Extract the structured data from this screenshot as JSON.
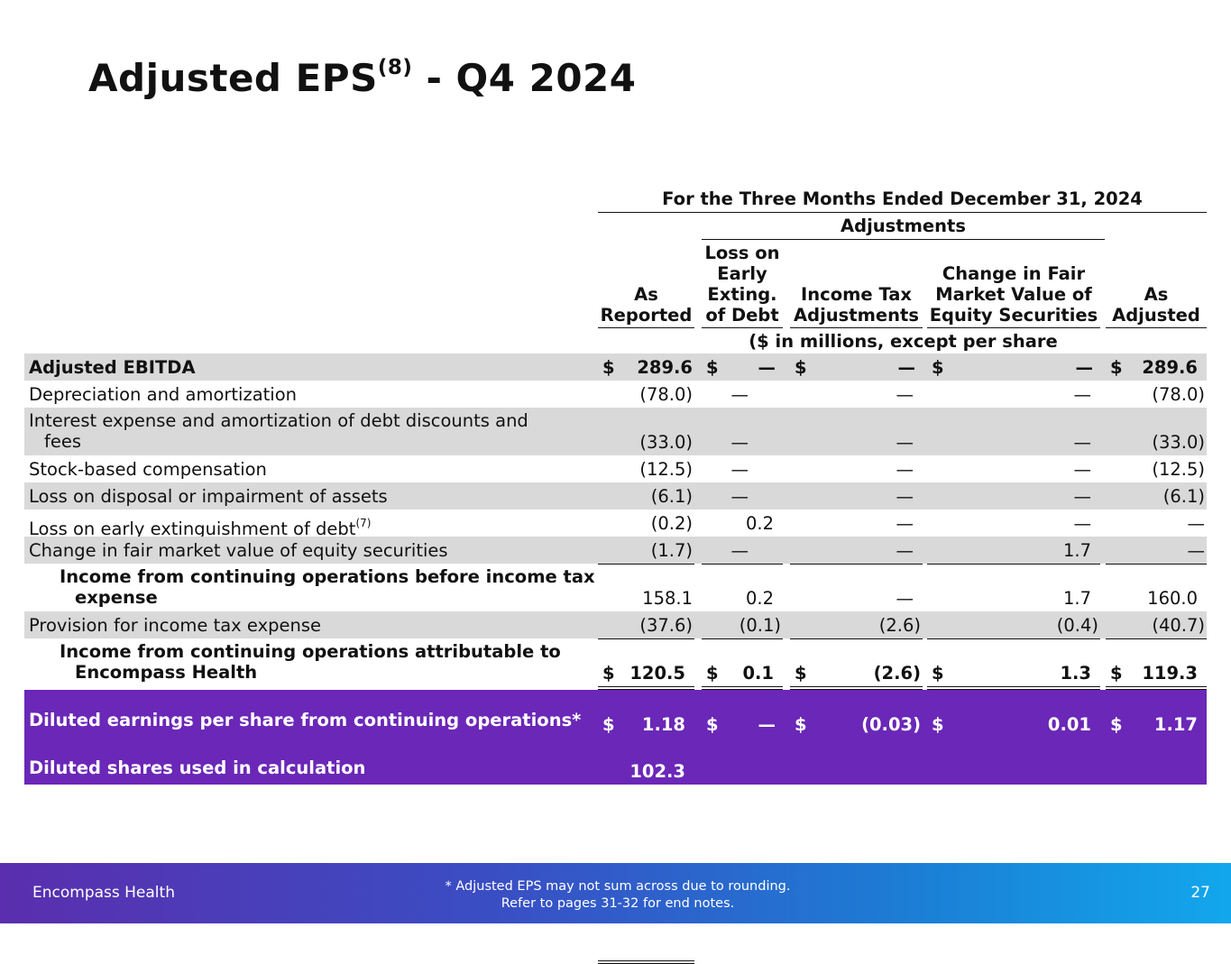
{
  "slide": {
    "title": "Adjusted EPS",
    "title_sup": "(8)",
    "title_suffix": "- Q4 2024"
  },
  "table": {
    "period_header": "For the Three Months Ended December 31, 2024",
    "adjustments_header": "Adjustments",
    "columns": {
      "as_reported": [
        "As",
        "Reported"
      ],
      "loss_on_debt": [
        "Loss on",
        "Early",
        "Exting.",
        "of Debt"
      ],
      "income_tax": [
        "Income Tax",
        "Adjustments"
      ],
      "fair_value": [
        "Change in Fair",
        "Market Value of",
        "Equity Securities"
      ],
      "as_adjusted": [
        "As",
        "Adjusted"
      ]
    },
    "units_note": "($ in millions, except per share amounts)",
    "rows": [
      {
        "label": "Adjusted EBITDA",
        "c1": "289.6",
        "c2": "—",
        "c3": "—",
        "c4": "—",
        "c5": "289.6"
      },
      {
        "label": "Depreciation and amortization",
        "c1": "(78.0)",
        "c2": "—",
        "c3": "—",
        "c4": "—",
        "c5": "(78.0)"
      },
      {
        "label_line1": "Interest expense and amortization of debt discounts and",
        "label_line2": "fees",
        "c1": "(33.0)",
        "c2": "—",
        "c3": "—",
        "c4": "—",
        "c5": "(33.0)"
      },
      {
        "label": "Stock-based compensation",
        "c1": "(12.5)",
        "c2": "—",
        "c3": "—",
        "c4": "—",
        "c5": "(12.5)"
      },
      {
        "label": "Loss on disposal or impairment of assets",
        "c1": "(6.1)",
        "c2": "—",
        "c3": "—",
        "c4": "—",
        "c5": "(6.1)"
      },
      {
        "label": "Loss on early extinguishment of debt",
        "label_sup": "(7)",
        "c1": "(0.2)",
        "c2": "0.2",
        "c3": "—",
        "c4": "—",
        "c5": "—"
      },
      {
        "label": "Change in fair market value of equity securities",
        "c1": "(1.7)",
        "c2": "—",
        "c3": "—",
        "c4": "1.7",
        "c5": "—"
      },
      {
        "label_line1": "Income from continuing operations before income tax",
        "label_line2": "expense",
        "c1": "158.1",
        "c2": "0.2",
        "c3": "—",
        "c4": "1.7",
        "c5": "160.0"
      },
      {
        "label": "Provision for income tax expense",
        "c1": "(37.6)",
        "c2": "(0.1)",
        "c3": "(2.6)",
        "c4": "(0.4)",
        "c5": "(40.7)"
      },
      {
        "label_line1": "Income from continuing operations attributable to",
        "label_line2": "Encompass Health",
        "c1": "120.5",
        "c2": "0.1",
        "c3": "(2.6)",
        "c4": "1.3",
        "c5": "119.3"
      },
      {
        "label": "Diluted earnings per share from continuing operations*",
        "c1": "1.18",
        "c2": "—",
        "c3": "(0.03)",
        "c4": "0.01",
        "c5": "1.17"
      },
      {
        "label": "Diluted shares used in calculation",
        "c1": "102.3"
      }
    ],
    "currency_symbol": "$"
  },
  "footer": {
    "brand": "Encompass Health",
    "note_line1": "*  Adjusted EPS may not sum across due to rounding.",
    "note_line2": "Refer to pages 31-32 for end notes.",
    "page_number": "27"
  }
}
